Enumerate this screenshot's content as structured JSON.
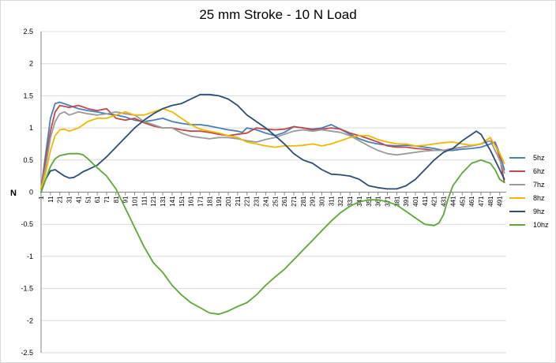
{
  "chart_data": {
    "type": "line",
    "title": "25 mm Stroke - 10 N Load",
    "ylabel": "N",
    "xlabel": "",
    "ylim": [
      -2.5,
      2.5
    ],
    "yticks": [
      "2.5",
      "2",
      "1.5",
      "1",
      "0.5",
      "0",
      "-0.5",
      "-1",
      "-1.5",
      "-2",
      "-2.5"
    ],
    "xticks": [
      "1",
      "11",
      "21",
      "31",
      "41",
      "51",
      "61",
      "71",
      "81",
      "91",
      "101",
      "111",
      "121",
      "131",
      "141",
      "151",
      "161",
      "171",
      "181",
      "191",
      "201",
      "211",
      "221",
      "231",
      "241",
      "251",
      "261",
      "271",
      "281",
      "291",
      "301",
      "311",
      "321",
      "331",
      "341",
      "351",
      "361",
      "371",
      "381",
      "391",
      "401",
      "411",
      "421",
      "431",
      "441",
      "451",
      "461",
      "471",
      "481",
      "491"
    ],
    "xlim": [
      1,
      498
    ],
    "grid": true,
    "legend_position": "right",
    "series": [
      {
        "name": "5hz",
        "color": "#4a7ebb",
        "x": [
          1,
          6,
          11,
          16,
          21,
          31,
          41,
          51,
          61,
          71,
          81,
          91,
          101,
          111,
          121,
          131,
          141,
          151,
          161,
          171,
          181,
          191,
          201,
          211,
          216,
          221,
          231,
          241,
          251,
          261,
          271,
          281,
          291,
          301,
          311,
          321,
          331,
          341,
          351,
          361,
          371,
          381,
          391,
          401,
          411,
          421,
          431,
          441,
          451,
          461,
          471,
          481,
          486,
          491,
          496
        ],
        "y": [
          0.05,
          0.6,
          1.15,
          1.38,
          1.4,
          1.35,
          1.3,
          1.27,
          1.25,
          1.22,
          1.2,
          1.17,
          1.12,
          1.1,
          1.12,
          1.15,
          1.1,
          1.07,
          1.05,
          1.05,
          1.03,
          1.0,
          0.97,
          0.95,
          0.93,
          1.0,
          0.97,
          0.92,
          0.88,
          0.93,
          1.02,
          1.0,
          0.98,
          1.0,
          1.05,
          0.98,
          0.9,
          0.83,
          0.78,
          0.75,
          0.73,
          0.72,
          0.73,
          0.72,
          0.7,
          0.68,
          0.65,
          0.65,
          0.67,
          0.68,
          0.7,
          0.75,
          0.78,
          0.6,
          0.35
        ]
      },
      {
        "name": "6hz",
        "color": "#be4b48",
        "x": [
          1,
          6,
          11,
          16,
          21,
          31,
          41,
          51,
          61,
          71,
          81,
          91,
          101,
          111,
          121,
          131,
          141,
          151,
          161,
          171,
          181,
          191,
          201,
          211,
          221,
          231,
          241,
          251,
          261,
          271,
          281,
          291,
          301,
          311,
          321,
          331,
          341,
          351,
          361,
          371,
          381,
          391,
          401,
          411,
          421,
          431,
          441,
          451,
          461,
          471,
          481,
          486,
          491,
          496
        ],
        "y": [
          0.05,
          0.5,
          0.95,
          1.25,
          1.35,
          1.32,
          1.35,
          1.3,
          1.27,
          1.3,
          1.15,
          1.12,
          1.15,
          1.08,
          1.03,
          1.0,
          1.0,
          0.97,
          0.95,
          0.95,
          0.93,
          0.9,
          0.88,
          0.9,
          0.92,
          1.0,
          0.98,
          0.97,
          0.98,
          1.02,
          1.0,
          0.97,
          0.98,
          1.0,
          0.98,
          0.92,
          0.88,
          0.83,
          0.78,
          0.72,
          0.7,
          0.7,
          0.68,
          0.67,
          0.65,
          0.65,
          0.68,
          0.7,
          0.72,
          0.75,
          0.8,
          0.75,
          0.55,
          0.15
        ]
      },
      {
        "name": "7hz",
        "color": "#9a9a9a",
        "x": [
          1,
          6,
          11,
          16,
          21,
          26,
          31,
          41,
          51,
          61,
          71,
          81,
          91,
          101,
          111,
          121,
          131,
          141,
          151,
          161,
          171,
          181,
          191,
          201,
          211,
          221,
          231,
          241,
          251,
          261,
          271,
          281,
          291,
          301,
          311,
          321,
          331,
          341,
          351,
          361,
          371,
          381,
          391,
          401,
          411,
          421,
          431,
          441,
          451,
          461,
          471,
          481,
          491,
          496
        ],
        "y": [
          0.05,
          0.4,
          0.85,
          1.1,
          1.22,
          1.25,
          1.2,
          1.25,
          1.22,
          1.2,
          1.22,
          1.25,
          1.22,
          1.2,
          1.1,
          1.05,
          1.0,
          1.0,
          0.92,
          0.87,
          0.85,
          0.83,
          0.85,
          0.85,
          0.83,
          0.8,
          0.78,
          0.82,
          0.85,
          0.9,
          0.95,
          0.97,
          0.95,
          0.97,
          0.95,
          0.93,
          0.88,
          0.8,
          0.72,
          0.65,
          0.6,
          0.58,
          0.6,
          0.62,
          0.64,
          0.65,
          0.65,
          0.67,
          0.7,
          0.72,
          0.75,
          0.8,
          0.5,
          0.3
        ]
      },
      {
        "name": "8hz",
        "color": "#f1b800",
        "x": [
          1,
          6,
          11,
          16,
          21,
          26,
          31,
          41,
          51,
          61,
          71,
          81,
          91,
          101,
          111,
          121,
          131,
          141,
          151,
          161,
          171,
          181,
          191,
          201,
          211,
          221,
          231,
          241,
          251,
          261,
          271,
          281,
          291,
          301,
          311,
          321,
          331,
          341,
          351,
          361,
          371,
          381,
          391,
          401,
          411,
          421,
          431,
          441,
          451,
          461,
          471,
          481,
          491,
          496
        ],
        "y": [
          0.05,
          0.3,
          0.65,
          0.88,
          0.97,
          0.98,
          0.95,
          1.0,
          1.1,
          1.15,
          1.15,
          1.2,
          1.25,
          1.2,
          1.2,
          1.25,
          1.3,
          1.25,
          1.15,
          1.05,
          0.98,
          0.95,
          0.92,
          0.88,
          0.85,
          0.78,
          0.75,
          0.72,
          0.7,
          0.72,
          0.72,
          0.73,
          0.75,
          0.72,
          0.75,
          0.8,
          0.85,
          0.88,
          0.88,
          0.82,
          0.78,
          0.75,
          0.75,
          0.72,
          0.73,
          0.75,
          0.77,
          0.78,
          0.75,
          0.73,
          0.75,
          0.85,
          0.6,
          0.45
        ]
      },
      {
        "name": "9hz",
        "color": "#2c4d75",
        "x": [
          1,
          6,
          11,
          16,
          21,
          26,
          31,
          36,
          41,
          46,
          51,
          61,
          71,
          81,
          91,
          101,
          111,
          121,
          131,
          141,
          151,
          161,
          171,
          181,
          191,
          201,
          211,
          221,
          231,
          241,
          251,
          261,
          271,
          281,
          291,
          301,
          311,
          321,
          331,
          341,
          351,
          361,
          371,
          381,
          391,
          401,
          411,
          421,
          431,
          441,
          451,
          461,
          466,
          471,
          481,
          486,
          491,
          496
        ],
        "y": [
          0.0,
          0.2,
          0.33,
          0.35,
          0.3,
          0.25,
          0.22,
          0.23,
          0.27,
          0.32,
          0.35,
          0.42,
          0.55,
          0.7,
          0.85,
          1.0,
          1.12,
          1.22,
          1.3,
          1.35,
          1.38,
          1.45,
          1.52,
          1.52,
          1.5,
          1.45,
          1.35,
          1.2,
          1.1,
          1.0,
          0.88,
          0.75,
          0.6,
          0.5,
          0.45,
          0.35,
          0.28,
          0.27,
          0.25,
          0.2,
          0.1,
          0.07,
          0.05,
          0.05,
          0.1,
          0.2,
          0.35,
          0.5,
          0.62,
          0.68,
          0.8,
          0.9,
          0.95,
          0.9,
          0.65,
          0.5,
          0.35,
          0.2
        ]
      },
      {
        "name": "10hz",
        "color": "#5aa838",
        "x": [
          1,
          6,
          11,
          16,
          21,
          31,
          41,
          46,
          51,
          61,
          71,
          81,
          91,
          101,
          111,
          121,
          131,
          141,
          151,
          161,
          171,
          181,
          191,
          201,
          211,
          221,
          231,
          241,
          251,
          261,
          271,
          281,
          291,
          301,
          311,
          321,
          331,
          341,
          351,
          361,
          371,
          381,
          391,
          401,
          411,
          421,
          426,
          431,
          436,
          441,
          451,
          461,
          471,
          481,
          486,
          491,
          496
        ],
        "y": [
          0.0,
          0.2,
          0.4,
          0.52,
          0.57,
          0.6,
          0.6,
          0.58,
          0.52,
          0.38,
          0.25,
          0.05,
          -0.25,
          -0.55,
          -0.85,
          -1.1,
          -1.25,
          -1.45,
          -1.6,
          -1.72,
          -1.8,
          -1.88,
          -1.9,
          -1.85,
          -1.78,
          -1.72,
          -1.6,
          -1.45,
          -1.32,
          -1.2,
          -1.05,
          -0.9,
          -0.75,
          -0.6,
          -0.45,
          -0.32,
          -0.22,
          -0.15,
          -0.12,
          -0.12,
          -0.15,
          -0.2,
          -0.3,
          -0.4,
          -0.5,
          -0.52,
          -0.48,
          -0.35,
          -0.1,
          0.1,
          0.3,
          0.45,
          0.5,
          0.45,
          0.35,
          0.2,
          0.15
        ]
      }
    ]
  }
}
